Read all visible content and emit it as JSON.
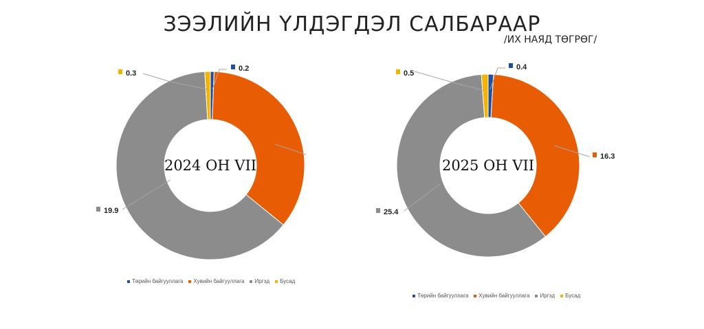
{
  "title": "ЗЭЭЛИЙН ҮЛДЭГДЭЛ САЛБАРААР",
  "unit": "/ИХ НАЯД ТӨГРӨГ/",
  "legend": {
    "items": [
      {
        "label": "Төрийн байгууллага",
        "color": "#1f4e9e"
      },
      {
        "label": "Хувийн байгууллага",
        "color": "#e85d04"
      },
      {
        "label": "Иргэд",
        "color": "#8c8c8c"
      },
      {
        "label": "Бусад",
        "color": "#f5b400"
      }
    ]
  },
  "chart_data": [
    {
      "type": "pie",
      "center_label": "2024 ОН VII",
      "categories": [
        "Төрийн байгууллага",
        "Хувийн байгууллага",
        "Иргэд",
        "Бусад"
      ],
      "values": [
        0.2,
        11.1,
        19.9,
        0.3
      ],
      "value_labels": [
        "0.2",
        "",
        "19.9",
        "0.3"
      ],
      "colors": [
        "#1f4e9e",
        "#e85d04",
        "#8c8c8c",
        "#f5b400"
      ]
    },
    {
      "type": "pie",
      "center_label": "2025 ОН VII",
      "categories": [
        "Төрийн байгууллага",
        "Хувийн байгууллага",
        "Иргэд",
        "Бусад"
      ],
      "values": [
        0.4,
        16.3,
        25.4,
        0.5
      ],
      "value_labels": [
        "0.4",
        "16.3",
        "25.4",
        "0.5"
      ],
      "colors": [
        "#1f4e9e",
        "#e85d04",
        "#8c8c8c",
        "#f5b400"
      ]
    }
  ]
}
